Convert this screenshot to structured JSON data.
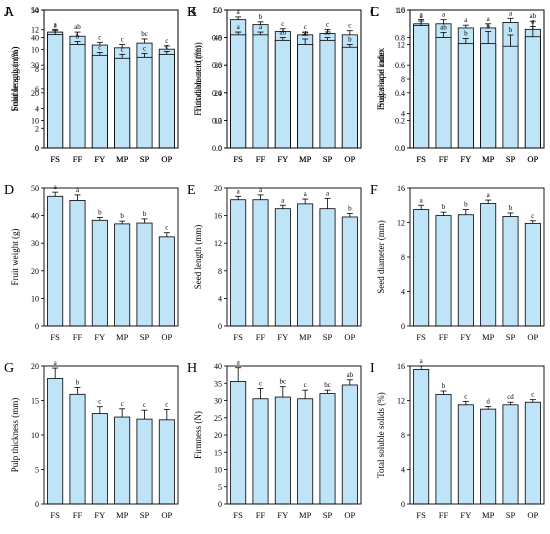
{
  "colors": {
    "bar_fill": "#bfe4f7",
    "bar_stroke": "#000000",
    "axis": "#000000"
  },
  "chart_data": [
    {
      "panel": "A",
      "type": "bar",
      "ylabel": "Fruit length (mm)",
      "ylim": [
        0,
        50
      ],
      "yticks": [
        0,
        10,
        20,
        30,
        40,
        50
      ],
      "categories": [
        "FS",
        "FF",
        "FY",
        "MP",
        "SP",
        "OP"
      ],
      "values": [
        42.0,
        40.5,
        37.3,
        36.3,
        38.0,
        35.8
      ],
      "errors": [
        1.0,
        1.5,
        1.0,
        1.2,
        1.5,
        1.2
      ],
      "letters": [
        "a",
        "ab",
        "c",
        "c",
        "bc",
        "c"
      ]
    },
    {
      "panel": "B",
      "type": "bar",
      "ylabel": "Fruit diameter (mm)",
      "ylim": [
        0,
        50
      ],
      "yticks": [
        0,
        10,
        20,
        30,
        40,
        50
      ],
      "categories": [
        "FS",
        "FF",
        "FY",
        "MP",
        "SP",
        "OP"
      ],
      "values": [
        46.5,
        44.7,
        42.2,
        41.0,
        41.5,
        41.0
      ],
      "errors": [
        1.0,
        1.0,
        1.0,
        1.0,
        1.5,
        1.5
      ],
      "letters": [
        "a",
        "b",
        "c",
        "c",
        "c",
        "c"
      ]
    },
    {
      "panel": "C",
      "type": "bar",
      "ylabel": "Fruit shape index",
      "ylim": [
        0,
        1.0
      ],
      "yticks": [
        0,
        0.2,
        0.4,
        0.6,
        0.8,
        1.0
      ],
      "categories": [
        "FS",
        "FF",
        "FY",
        "MP",
        "SP",
        "OP"
      ],
      "values": [
        0.9,
        0.9,
        0.87,
        0.87,
        0.91,
        0.86
      ],
      "errors": [
        0.02,
        0.03,
        0.02,
        0.03,
        0.03,
        0.02
      ],
      "letters": [
        "a",
        "a",
        "a",
        "a",
        "a",
        "a"
      ]
    },
    {
      "panel": "D",
      "type": "bar",
      "ylabel": "Fruit weight (g)",
      "ylim": [
        0,
        50
      ],
      "yticks": [
        0,
        10,
        20,
        30,
        40,
        50
      ],
      "categories": [
        "FS",
        "FF",
        "FY",
        "MP",
        "SP",
        "OP"
      ],
      "values": [
        47.0,
        45.5,
        38.3,
        37.0,
        37.3,
        32.3
      ],
      "errors": [
        1.5,
        2.0,
        1.0,
        1.0,
        1.5,
        1.5
      ],
      "letters": [
        "a",
        "a",
        "b",
        "b",
        "b",
        "c"
      ]
    },
    {
      "panel": "E",
      "type": "bar",
      "ylabel": "Seed length (mm)",
      "ylim": [
        0,
        20
      ],
      "yticks": [
        0,
        4,
        8,
        12,
        16,
        20
      ],
      "categories": [
        "FS",
        "FF",
        "FY",
        "MP",
        "SP",
        "OP"
      ],
      "values": [
        18.3,
        18.3,
        17.0,
        17.7,
        17.0,
        15.8
      ],
      "errors": [
        0.5,
        0.7,
        0.5,
        0.7,
        1.5,
        0.5
      ],
      "letters": [
        "a",
        "a",
        "a",
        "a",
        "a",
        "b"
      ]
    },
    {
      "panel": "F",
      "type": "bar",
      "ylabel": "Seed diameter (mm)",
      "ylim": [
        0,
        16
      ],
      "yticks": [
        0,
        4,
        8,
        12,
        16
      ],
      "categories": [
        "FS",
        "FF",
        "FY",
        "MP",
        "SP",
        "OP"
      ],
      "values": [
        13.5,
        12.8,
        12.9,
        14.2,
        12.7,
        11.9
      ],
      "errors": [
        0.5,
        0.4,
        0.6,
        0.4,
        0.4,
        0.3
      ],
      "letters": [
        "a",
        "b",
        "b",
        "a",
        "b",
        "c"
      ]
    },
    {
      "panel": "G",
      "type": "bar",
      "ylabel": "Pulp thickness (mm)",
      "ylim": [
        0,
        20
      ],
      "yticks": [
        0,
        5,
        10,
        15,
        20
      ],
      "categories": [
        "FS",
        "FF",
        "FY",
        "MP",
        "SP",
        "OP"
      ],
      "values": [
        18.2,
        15.9,
        13.1,
        12.6,
        12.3,
        12.2
      ],
      "errors": [
        1.5,
        1.0,
        1.0,
        1.2,
        1.3,
        1.5
      ],
      "letters": [
        "a",
        "b",
        "c",
        "c",
        "c",
        "c"
      ]
    },
    {
      "panel": "H",
      "type": "bar",
      "ylabel": "Firmness (N)",
      "ylim": [
        0,
        40
      ],
      "yticks": [
        0,
        5,
        10,
        15,
        20,
        25,
        30,
        35,
        40
      ],
      "categories": [
        "FS",
        "FF",
        "FY",
        "MP",
        "SP",
        "OP"
      ],
      "values": [
        35.5,
        30.5,
        31.0,
        30.5,
        32.0,
        34.5
      ],
      "errors": [
        4.0,
        3.0,
        3.0,
        2.5,
        1.0,
        1.5
      ],
      "letters": [
        "a",
        "c",
        "bc",
        "c",
        "bc",
        "ab"
      ]
    },
    {
      "panel": "I",
      "type": "bar",
      "ylabel": "Total soluble solids (%)",
      "ylim": [
        0,
        16
      ],
      "yticks": [
        0,
        4,
        8,
        12,
        16
      ],
      "categories": [
        "FS",
        "FF",
        "FY",
        "MP",
        "SP",
        "OP"
      ],
      "values": [
        15.6,
        12.7,
        11.5,
        11.0,
        11.5,
        11.8
      ],
      "errors": [
        0.4,
        0.4,
        0.4,
        0.3,
        0.3,
        0.3
      ],
      "letters": [
        "a",
        "b",
        "c",
        "d",
        "cd",
        "c"
      ]
    },
    {
      "panel": "J",
      "type": "bar",
      "ylabel": "Soluble sugar (%)",
      "ylim": [
        0,
        14
      ],
      "yticks": [
        0,
        2,
        4,
        6,
        8,
        10,
        12,
        14
      ],
      "categories": [
        "FS",
        "FF",
        "FY",
        "MP",
        "SP",
        "OP"
      ],
      "values": [
        11.5,
        10.5,
        9.4,
        9.1,
        9.2,
        9.5
      ],
      "errors": [
        0.4,
        0.3,
        0.3,
        0.4,
        0.4,
        0.3
      ],
      "letters": [
        "a",
        "b",
        "c",
        "c",
        "c",
        "c"
      ]
    },
    {
      "panel": "K",
      "type": "bar",
      "ylabel": "Titratable acid (%)",
      "ylim": [
        0,
        1.0
      ],
      "yticks": [
        0,
        0.2,
        0.4,
        0.6,
        0.8,
        1.0
      ],
      "categories": [
        "FS",
        "FF",
        "FY",
        "MP",
        "SP",
        "OP"
      ],
      "values": [
        0.82,
        0.82,
        0.78,
        0.75,
        0.78,
        0.73
      ],
      "errors": [
        0.02,
        0.02,
        0.02,
        0.04,
        0.02,
        0.02
      ],
      "letters": [
        "a",
        "a",
        "ab",
        "ab",
        "ab",
        "b"
      ]
    },
    {
      "panel": "L",
      "type": "bar",
      "ylabel": "Sugar-acid ratio",
      "ylim": [
        0,
        16
      ],
      "yticks": [
        0,
        4,
        8,
        12,
        16
      ],
      "categories": [
        "FS",
        "FF",
        "FY",
        "MP",
        "SP",
        "OP"
      ],
      "values": [
        14.2,
        12.8,
        12.1,
        12.1,
        11.8,
        12.9
      ],
      "errors": [
        0.7,
        0.6,
        0.6,
        1.4,
        1.3,
        1.8
      ],
      "letters": [
        "a",
        "ab",
        "b",
        "b",
        "b",
        "ab"
      ]
    }
  ]
}
